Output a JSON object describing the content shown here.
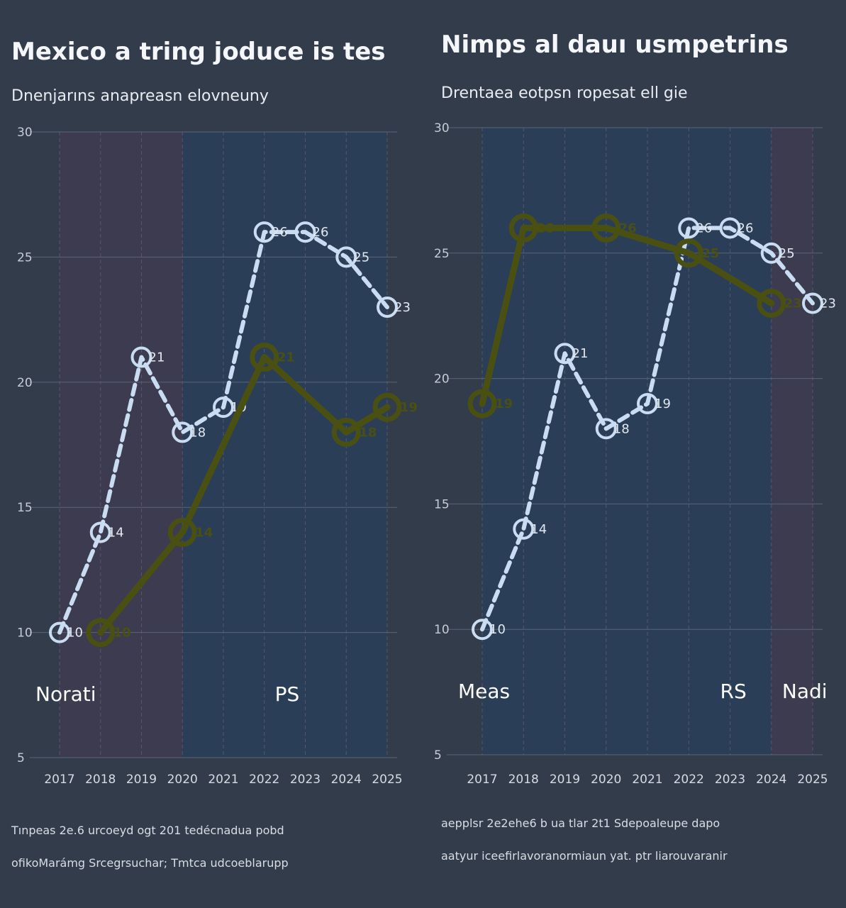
{
  "colors": {
    "background": "#333c4b",
    "band_a": "#3e3b4f",
    "band_b": "#2b3e58",
    "series_a": "#c9dcf2",
    "series_b": "#4a4f12"
  },
  "chart_data": [
    {
      "type": "line",
      "title": "Mexico a tring joduce is tes",
      "subtitle": "Dnenjarıns anapreasn elovneuny",
      "ylim": [
        5,
        30
      ],
      "yticks": [
        5,
        10,
        15,
        20,
        25,
        30
      ],
      "x": [
        "2017",
        "2018",
        "2019",
        "2020",
        "2021",
        "2022",
        "2023",
        "2024",
        "2025"
      ],
      "bands": [
        {
          "label": "Norati",
          "start": 0,
          "end": 3
        },
        {
          "label": "PS",
          "start": 3,
          "end": 8
        }
      ],
      "series": [
        {
          "style": "dashed",
          "values": [
            10,
            14,
            21,
            18,
            19,
            26,
            26,
            25,
            23
          ]
        },
        {
          "style": "solid",
          "values": [
            null,
            10,
            null,
            14,
            null,
            21,
            null,
            18,
            19
          ]
        }
      ],
      "grid": true,
      "notes": [
        "Tınpeas 2e.6 urcoeyd ogt 201 tedécnadua pobd",
        "ofikoMarámg Srcegrsuchar; Tmtca udcoeblarupp"
      ]
    },
    {
      "type": "line",
      "title": "Nimps al dauı usmpetrins",
      "subtitle": "Drentaea eotpsn ropesat ell gie",
      "ylim": [
        5,
        30
      ],
      "yticks": [
        5,
        10,
        15,
        20,
        25,
        30
      ],
      "x": [
        "2017",
        "2018",
        "2019",
        "2020",
        "2021",
        "2022",
        "2023",
        "2024",
        "2025"
      ],
      "bands": [
        {
          "label": "Meas",
          "start": 0,
          "end": 5
        },
        {
          "label": "RS",
          "start": 5,
          "end": 7
        },
        {
          "label": "Nadi",
          "start": 7,
          "end": 8
        }
      ],
      "series": [
        {
          "style": "dashed",
          "values": [
            10,
            14,
            21,
            18,
            19,
            26,
            26,
            25,
            23
          ]
        },
        {
          "style": "solid",
          "values": [
            19,
            26,
            null,
            26,
            null,
            25,
            null,
            23,
            null
          ]
        }
      ],
      "grid": true,
      "notes": [
        "aepplsr 2e2ehe6 b ua tlar 2t1 Sdepoaleupe dapo",
        "aatyur iceefirlavoranormiaun yat. ptr liarouvaranir"
      ]
    }
  ]
}
